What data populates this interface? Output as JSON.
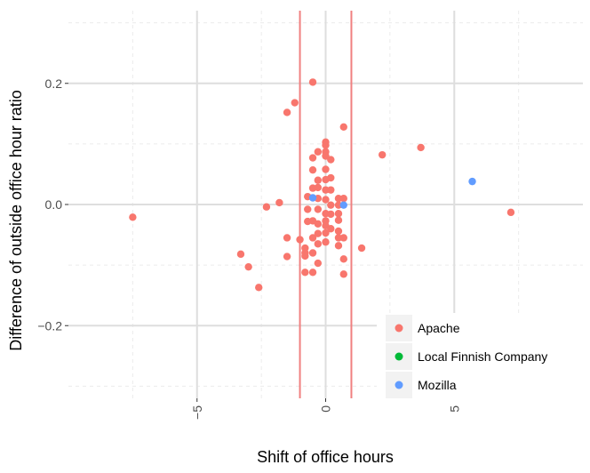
{
  "chart_data": {
    "type": "scatter",
    "title": "",
    "xlabel": "Shift of office hours",
    "ylabel": "Difference of outside office hour ratio",
    "xlim": [
      -10,
      10
    ],
    "ylim": [
      -0.32,
      0.32
    ],
    "x_ticks": [
      -5,
      0,
      5
    ],
    "x_tick_labels": [
      "−5",
      "0",
      "5"
    ],
    "y_ticks": [
      -0.2,
      0.0,
      0.2
    ],
    "y_tick_labels": [
      "−0.2",
      "0.0",
      "0.2"
    ],
    "grid": true,
    "legend_position": "bottom-right",
    "vlines": [
      {
        "x": -1.0,
        "color": "#f08080"
      },
      {
        "x": 1.0,
        "color": "#f08080"
      }
    ],
    "series": [
      {
        "name": "Apache",
        "color": "#f8766d",
        "points": [
          [
            -7.5,
            -0.021
          ],
          [
            -3.3,
            -0.082
          ],
          [
            -3.0,
            -0.103
          ],
          [
            -2.6,
            -0.137
          ],
          [
            -2.3,
            -0.004
          ],
          [
            -1.8,
            0.003
          ],
          [
            -1.5,
            0.152
          ],
          [
            -1.5,
            -0.055
          ],
          [
            -1.5,
            -0.086
          ],
          [
            -1.2,
            0.168
          ],
          [
            -1.0,
            -0.058
          ],
          [
            -0.5,
            0.202
          ],
          [
            -0.8,
            -0.072
          ],
          [
            -0.8,
            -0.08
          ],
          [
            -0.8,
            -0.085
          ],
          [
            -0.8,
            -0.112
          ],
          [
            -0.7,
            0.013
          ],
          [
            -0.7,
            -0.008
          ],
          [
            -0.7,
            -0.028
          ],
          [
            -0.5,
            0.077
          ],
          [
            -0.5,
            0.057
          ],
          [
            -0.5,
            0.027
          ],
          [
            -0.5,
            -0.027
          ],
          [
            -0.5,
            -0.055
          ],
          [
            -0.5,
            -0.08
          ],
          [
            -0.5,
            -0.112
          ],
          [
            -0.3,
            0.087
          ],
          [
            -0.3,
            0.04
          ],
          [
            -0.3,
            0.028
          ],
          [
            -0.3,
            0.01
          ],
          [
            -0.3,
            -0.008
          ],
          [
            -0.3,
            -0.032
          ],
          [
            -0.3,
            -0.048
          ],
          [
            -0.3,
            -0.065
          ],
          [
            -0.3,
            -0.097
          ],
          [
            0.0,
            0.103
          ],
          [
            0.0,
            0.098
          ],
          [
            0.0,
            0.087
          ],
          [
            0.0,
            0.08
          ],
          [
            0.0,
            0.058
          ],
          [
            0.0,
            0.041
          ],
          [
            0.0,
            0.024
          ],
          [
            0.0,
            0.008
          ],
          [
            0.0,
            -0.015
          ],
          [
            0.0,
            -0.027
          ],
          [
            0.0,
            -0.035
          ],
          [
            0.0,
            -0.047
          ],
          [
            0.0,
            -0.062
          ],
          [
            0.2,
            0.074
          ],
          [
            0.2,
            0.044
          ],
          [
            0.2,
            0.024
          ],
          [
            0.2,
            -0.001
          ],
          [
            0.2,
            -0.016
          ],
          [
            0.2,
            -0.04
          ],
          [
            0.5,
            0.01
          ],
          [
            0.5,
            -0.001
          ],
          [
            0.5,
            -0.015
          ],
          [
            0.5,
            -0.026
          ],
          [
            0.5,
            -0.044
          ],
          [
            0.5,
            -0.055
          ],
          [
            0.5,
            -0.068
          ],
          [
            0.7,
            0.128
          ],
          [
            0.7,
            0.01
          ],
          [
            0.7,
            -0.055
          ],
          [
            0.7,
            -0.09
          ],
          [
            0.7,
            -0.115
          ],
          [
            1.4,
            -0.072
          ],
          [
            2.2,
            0.082
          ],
          [
            3.7,
            0.094
          ],
          [
            7.2,
            -0.013
          ]
        ]
      },
      {
        "name": "Local Finnish Company",
        "color": "#00ba38",
        "points": []
      },
      {
        "name": "Mozilla",
        "color": "#619cff",
        "points": [
          [
            -0.5,
            0.011
          ],
          [
            0.7,
            -0.001
          ],
          [
            5.7,
            0.038
          ]
        ]
      }
    ]
  }
}
